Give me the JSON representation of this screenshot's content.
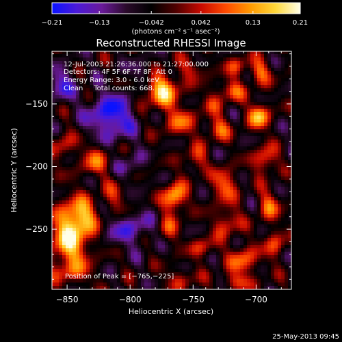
{
  "chart_data": {
    "type": "heatmap",
    "title": "Reconstructed RHESSI Image",
    "xlabel": "Heliocentric X (arcsec)",
    "ylabel": "Heliocentric Y (arcsec)",
    "xlim": [
      -862,
      -672
    ],
    "ylim": [
      -298,
      -108
    ],
    "xticks": [
      -850,
      -800,
      -750,
      -700
    ],
    "xtick_labels": [
      "−850",
      "−800",
      "−750",
      "−700"
    ],
    "yticks": [
      -250,
      -200,
      -150
    ],
    "ytick_labels": [
      "−250",
      "−200",
      "−150"
    ],
    "colorbar": {
      "range": [
        -0.21,
        0.21
      ],
      "ticks": [
        -0.21,
        -0.13,
        -0.042,
        0.042,
        0.13,
        0.21
      ],
      "tick_labels": [
        "−0.21",
        "−0.13",
        "−0.042",
        "0.042",
        "0.13",
        "0.21"
      ],
      "unit_label": "(photons cm⁻² s⁻¹ asec⁻²)",
      "colors": [
        "#0a12ff",
        "#4b1ad8",
        "#6a1a9a",
        "#2a0a2a",
        "#000000",
        "#500000",
        "#c80a00",
        "#ff4a00",
        "#ff9a00",
        "#ffd83a",
        "#ffffe8"
      ]
    },
    "annotations": [
      "12-Jul-2003 21:26:36.000 to 21:27:00.000",
      "Detectors: 4F 5F 6F 7F 8F, Att 0",
      "Energy Range: 3.0 - 6.0 keV",
      "Clean     Total counts: 668."
    ],
    "peak_label": "Position of Peak = [−765,−225]",
    "peak": [
      -765,
      -225
    ],
    "sources": [
      {
        "x": -848,
        "y": -258,
        "value": 0.21,
        "sx": 11,
        "sy": 18
      },
      {
        "x": -838,
        "y": -240,
        "value": 0.14,
        "sx": 9,
        "sy": 10
      },
      {
        "x": -853,
        "y": -183,
        "value": 0.1,
        "sx": 6,
        "sy": 8
      },
      {
        "x": -828,
        "y": -195,
        "value": 0.12,
        "sx": 8,
        "sy": 9
      },
      {
        "x": -812,
        "y": -225,
        "value": 0.08,
        "sx": 7,
        "sy": 9
      },
      {
        "x": -845,
        "y": -285,
        "value": 0.06,
        "sx": 10,
        "sy": 6
      },
      {
        "x": -765,
        "y": -225,
        "value": 0.21,
        "sx": 6,
        "sy": 8
      },
      {
        "x": -770,
        "y": -250,
        "value": 0.09,
        "sx": 7,
        "sy": 8
      },
      {
        "x": -775,
        "y": -140,
        "value": 0.2,
        "sx": 10,
        "sy": 10
      },
      {
        "x": -760,
        "y": -165,
        "value": 0.12,
        "sx": 9,
        "sy": 8
      },
      {
        "x": -750,
        "y": -122,
        "value": 0.08,
        "sx": 8,
        "sy": 6
      },
      {
        "x": -748,
        "y": -195,
        "value": 0.1,
        "sx": 6,
        "sy": 8
      },
      {
        "x": -742,
        "y": -265,
        "value": 0.1,
        "sx": 7,
        "sy": 6
      },
      {
        "x": -720,
        "y": -140,
        "value": 0.12,
        "sx": 8,
        "sy": 6
      },
      {
        "x": -715,
        "y": -120,
        "value": 0.1,
        "sx": 6,
        "sy": 6
      },
      {
        "x": -730,
        "y": -170,
        "value": 0.12,
        "sx": 7,
        "sy": 7
      },
      {
        "x": -725,
        "y": -215,
        "value": 0.14,
        "sx": 7,
        "sy": 9
      },
      {
        "x": -723,
        "y": -245,
        "value": 0.12,
        "sx": 7,
        "sy": 8
      },
      {
        "x": -710,
        "y": -275,
        "value": 0.14,
        "sx": 8,
        "sy": 8
      },
      {
        "x": -698,
        "y": -160,
        "value": 0.19,
        "sx": 6,
        "sy": 7
      },
      {
        "x": -697,
        "y": -125,
        "value": 0.13,
        "sx": 6,
        "sy": 7
      },
      {
        "x": -693,
        "y": -195,
        "value": 0.14,
        "sx": 6,
        "sy": 8
      },
      {
        "x": -690,
        "y": -232,
        "value": 0.13,
        "sx": 6,
        "sy": 8
      },
      {
        "x": -685,
        "y": -262,
        "value": 0.11,
        "sx": 6,
        "sy": 8
      },
      {
        "x": -715,
        "y": -292,
        "value": 0.1,
        "sx": 9,
        "sy": 5
      },
      {
        "x": -760,
        "y": -290,
        "value": 0.08,
        "sx": 9,
        "sy": 6
      },
      {
        "x": -735,
        "y": -150,
        "value": 0.07,
        "sx": 6,
        "sy": 6
      }
    ],
    "sinks": [
      {
        "x": -815,
        "y": -160,
        "value": -0.16,
        "sx": 13,
        "sy": 13
      },
      {
        "x": -800,
        "y": -250,
        "value": -0.1,
        "sx": 14,
        "sy": 10
      },
      {
        "x": -855,
        "y": -135,
        "value": -0.12,
        "sx": 7,
        "sy": 9
      },
      {
        "x": -800,
        "y": -200,
        "value": -0.07,
        "sx": 7,
        "sy": 8
      },
      {
        "x": -790,
        "y": -125,
        "value": -0.07,
        "sx": 7,
        "sy": 6
      }
    ]
  },
  "footer": {
    "date": "25-May-2013 09:45"
  }
}
